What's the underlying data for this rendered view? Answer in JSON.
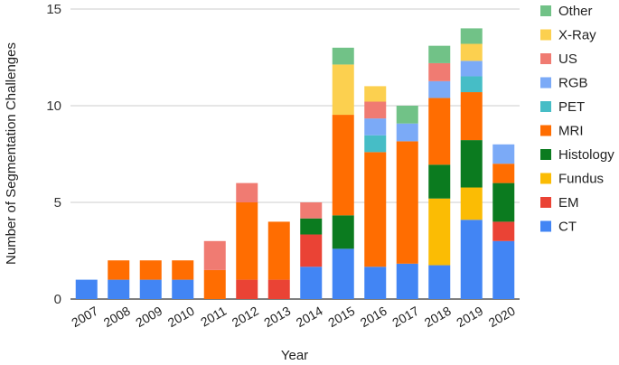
{
  "chart_data": {
    "type": "bar",
    "stacked": true,
    "title": "",
    "xlabel": "Year",
    "ylabel": "Number of Segmentation Challenges",
    "ylim": [
      0,
      15
    ],
    "yticks": [
      0,
      5,
      10,
      15
    ],
    "grid": true,
    "legend_position": "right",
    "categories": [
      "2007",
      "2008",
      "2009",
      "2010",
      "2011",
      "2012",
      "2013",
      "2014",
      "2015",
      "2016",
      "2017",
      "2018",
      "2019",
      "2020"
    ],
    "series": [
      {
        "name": "CT",
        "color": "#4285F4",
        "values": [
          1,
          1,
          1,
          1,
          0,
          0,
          0,
          1.67,
          2.6,
          1.67,
          1.83,
          1.75,
          4.1,
          3
        ]
      },
      {
        "name": "EM",
        "color": "#EA4335",
        "values": [
          0,
          0,
          0,
          0,
          0,
          1,
          1,
          1.67,
          0,
          0,
          0,
          0,
          0,
          1
        ]
      },
      {
        "name": "Fundus",
        "color": "#FBBC04",
        "values": [
          0,
          0,
          0,
          0,
          0,
          0,
          0,
          0,
          0,
          0,
          0,
          3.45,
          1.67,
          0
        ]
      },
      {
        "name": "Histology",
        "color": "#0B7B1F",
        "values": [
          0,
          0,
          0,
          0,
          0,
          0,
          0,
          0.83,
          1.73,
          0,
          0,
          1.75,
          2.45,
          2
        ]
      },
      {
        "name": "MRI",
        "color": "#FF6D01",
        "values": [
          0,
          1,
          1,
          1,
          1.5,
          4,
          3,
          0,
          5.2,
          5.93,
          6.33,
          3.45,
          2.48,
          1
        ]
      },
      {
        "name": "PET",
        "color": "#46BDC6",
        "values": [
          0,
          0,
          0,
          0,
          0,
          0,
          0,
          0,
          0,
          0.87,
          0,
          0,
          0.82,
          0
        ]
      },
      {
        "name": "RGB",
        "color": "#7BAAF7",
        "values": [
          0,
          0,
          0,
          0,
          0,
          0,
          0,
          0,
          0,
          0.87,
          0.92,
          0.87,
          0.8,
          1
        ]
      },
      {
        "name": "US",
        "color": "#F07B72",
        "values": [
          0,
          0,
          0,
          0,
          1.5,
          1,
          0,
          0.83,
          0,
          0.87,
          0,
          0.93,
          0,
          0
        ]
      },
      {
        "name": "X-Ray",
        "color": "#FCD04F",
        "values": [
          0,
          0,
          0,
          0,
          0,
          0,
          0,
          0,
          2.6,
          0.8,
          0,
          0,
          0.88,
          0
        ]
      },
      {
        "name": "Other",
        "color": "#71C287",
        "values": [
          0,
          0,
          0,
          0,
          0,
          0,
          0,
          0,
          0.87,
          0,
          0.92,
          0.9,
          0.8,
          0
        ]
      }
    ]
  }
}
